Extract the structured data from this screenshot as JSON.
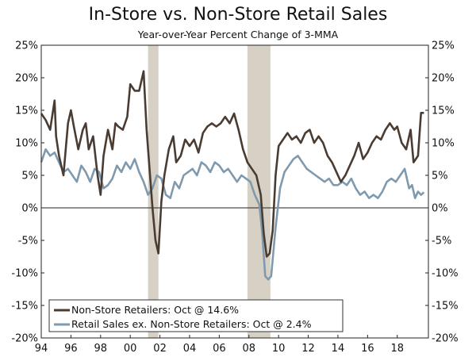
{
  "chart_data": {
    "type": "line",
    "title": "In-Store vs. Non-Store Retail Sales",
    "subtitle": "Year-over-Year Percent Change of 3-MMA",
    "xlabel": "",
    "ylabel": "",
    "xlim": [
      1994,
      2020.1
    ],
    "ylim": [
      -20,
      25
    ],
    "y_ticks": [
      25,
      20,
      15,
      10,
      5,
      0,
      -5,
      -10,
      -15,
      -20
    ],
    "y_tick_labels": [
      "25%",
      "20%",
      "15%",
      "10%",
      "5%",
      "0%",
      "-5%",
      "-10%",
      "-15%",
      "-20%"
    ],
    "x_ticks": [
      1994,
      1996,
      1998,
      2000,
      2002,
      2004,
      2006,
      2008,
      2010,
      2012,
      2014,
      2016,
      2018
    ],
    "x_tick_labels": [
      "94",
      "96",
      "98",
      "00",
      "02",
      "04",
      "06",
      "08",
      "10",
      "12",
      "14",
      "16",
      "18"
    ],
    "recessions": [
      [
        2001.2,
        2001.9
      ],
      [
        2007.9,
        2009.45
      ]
    ],
    "legend_position": "bottom-left",
    "series": [
      {
        "name": "Non-Store Retailers: Oct @ 14.6%",
        "color": "#4a3c32",
        "x": [
          1994.0,
          1994.3,
          1994.6,
          1994.9,
          1995.0,
          1995.2,
          1995.5,
          1995.8,
          1996.0,
          1996.2,
          1996.5,
          1996.8,
          1997.0,
          1997.2,
          1997.5,
          1997.8,
          1998.0,
          1998.2,
          1998.5,
          1998.8,
          1999.0,
          1999.2,
          1999.5,
          1999.8,
          2000.0,
          2000.3,
          2000.6,
          2000.9,
          2001.1,
          2001.3,
          2001.5,
          2001.7,
          2001.9,
          2002.1,
          2002.3,
          2002.6,
          2002.9,
          2003.1,
          2003.4,
          2003.7,
          2004.0,
          2004.3,
          2004.6,
          2004.9,
          2005.2,
          2005.5,
          2005.8,
          2006.1,
          2006.4,
          2006.7,
          2007.0,
          2007.3,
          2007.6,
          2007.9,
          2008.2,
          2008.5,
          2008.8,
          2009.0,
          2009.2,
          2009.4,
          2009.6,
          2009.8,
          2010.0,
          2010.3,
          2010.6,
          2010.9,
          2011.2,
          2011.5,
          2011.8,
          2012.1,
          2012.4,
          2012.7,
          2013.0,
          2013.3,
          2013.6,
          2013.9,
          2014.2,
          2014.5,
          2014.8,
          2015.1,
          2015.4,
          2015.7,
          2016.0,
          2016.3,
          2016.6,
          2016.9,
          2017.2,
          2017.5,
          2017.8,
          2018.0,
          2018.3,
          2018.6,
          2018.9,
          2019.1,
          2019.4,
          2019.6,
          2019.8
        ],
        "values": [
          14.5,
          13.5,
          12,
          16.5,
          11,
          8,
          5,
          13,
          15,
          12.5,
          9,
          12,
          13,
          9,
          11,
          5,
          2,
          8,
          12,
          9,
          13,
          12.5,
          12,
          14,
          19,
          18,
          18,
          21,
          12,
          6,
          0,
          -5,
          -7,
          1,
          5,
          9,
          11,
          7,
          8,
          10.5,
          9.5,
          10.5,
          8.5,
          11.5,
          12.5,
          13,
          12.5,
          13,
          14,
          13,
          14.5,
          12,
          9,
          7,
          6,
          5,
          2,
          -4,
          -7.5,
          -7,
          -3.5,
          5,
          9.5,
          10.5,
          11.5,
          10.5,
          11,
          10,
          11.5,
          12,
          10,
          11,
          10,
          8,
          7,
          5.5,
          4,
          5,
          6.5,
          8,
          10,
          7.5,
          8.5,
          10,
          11,
          10.5,
          12,
          13,
          12,
          12.5,
          10,
          9,
          12,
          7,
          8,
          14.6,
          14.6
        ]
      },
      {
        "name": "Retail Sales ex. Non-Store Retailers: Oct @ 2.4%",
        "color": "#7f9aae",
        "x": [
          1994.0,
          1994.3,
          1994.6,
          1994.9,
          1995.2,
          1995.5,
          1995.8,
          1996.1,
          1996.4,
          1996.7,
          1997.0,
          1997.3,
          1997.6,
          1997.9,
          1998.2,
          1998.5,
          1998.8,
          1999.1,
          1999.4,
          1999.7,
          2000.0,
          2000.3,
          2000.6,
          2000.9,
          2001.2,
          2001.5,
          2001.8,
          2002.1,
          2002.4,
          2002.7,
          2003.0,
          2003.3,
          2003.6,
          2003.9,
          2004.2,
          2004.5,
          2004.8,
          2005.1,
          2005.4,
          2005.7,
          2006.0,
          2006.3,
          2006.6,
          2006.9,
          2007.2,
          2007.5,
          2007.8,
          2008.1,
          2008.4,
          2008.7,
          2008.9,
          2009.1,
          2009.3,
          2009.5,
          2009.8,
          2010.1,
          2010.4,
          2010.7,
          2011.0,
          2011.3,
          2011.6,
          2011.9,
          2012.2,
          2012.5,
          2012.8,
          2013.1,
          2013.4,
          2013.7,
          2014.0,
          2014.3,
          2014.6,
          2014.9,
          2015.2,
          2015.5,
          2015.8,
          2016.1,
          2016.4,
          2016.7,
          2017.0,
          2017.3,
          2017.6,
          2017.9,
          2018.2,
          2018.5,
          2018.8,
          2019.0,
          2019.2,
          2019.4,
          2019.6,
          2019.8
        ],
        "values": [
          7,
          9,
          8,
          8.5,
          7,
          5.5,
          6,
          5,
          4,
          6.5,
          5.5,
          4,
          6,
          5.5,
          3,
          3.5,
          4.5,
          6.5,
          5.5,
          7,
          6,
          7.5,
          5.5,
          4,
          2,
          3,
          5,
          4.5,
          2,
          1.5,
          4,
          3,
          5,
          5.5,
          6,
          5,
          7,
          6.5,
          5.5,
          7,
          6.5,
          5.5,
          6,
          5,
          4,
          5,
          4.5,
          4,
          2,
          0.5,
          -4,
          -10.5,
          -11,
          -10.5,
          -3,
          3,
          5.5,
          6.5,
          7.5,
          8,
          7,
          6,
          5.5,
          5,
          4.5,
          4,
          4.5,
          3.5,
          3.5,
          4,
          3.5,
          4.5,
          3,
          2,
          2.5,
          1.5,
          2,
          1.5,
          2.5,
          4,
          4.5,
          4,
          5,
          6,
          3,
          3.5,
          1.5,
          2.5,
          2,
          2.4
        ]
      }
    ]
  }
}
